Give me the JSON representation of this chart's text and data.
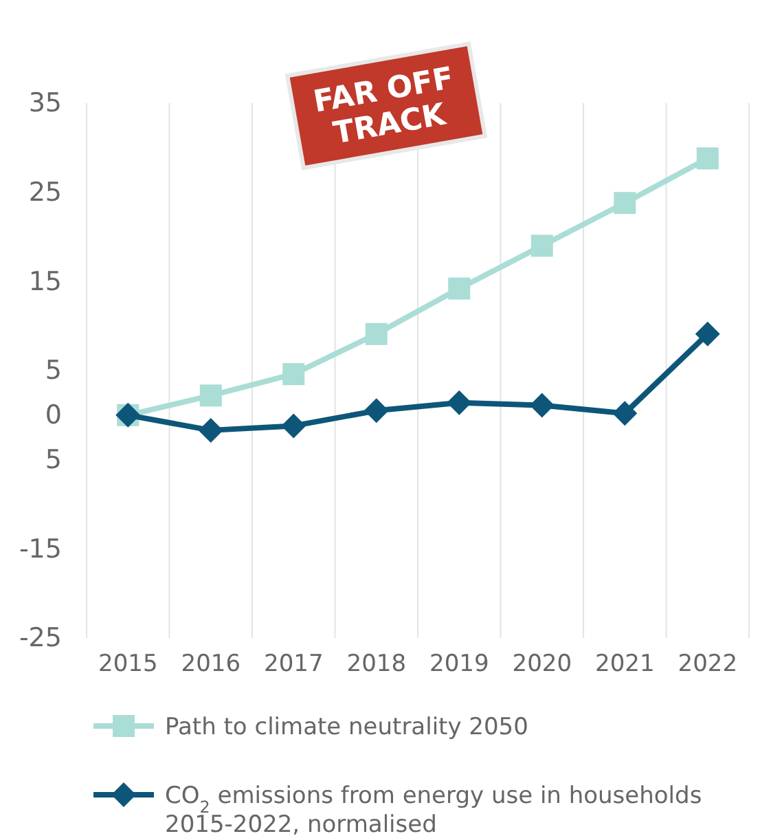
{
  "chart_data": {
    "type": "line",
    "categories": [
      "2015",
      "2016",
      "2017",
      "2018",
      "2019",
      "2020",
      "2021",
      "2022"
    ],
    "series": [
      {
        "name": "Path to climate neutrality 2050",
        "color": "#a9ddd6",
        "marker": "square",
        "values": [
          0,
          2.2,
          4.6,
          9.1,
          14.2,
          19,
          23.8,
          28.8
        ]
      },
      {
        "name": "CO$_{2}$ emissions from energy use in households 2015-2022, normalised",
        "color": "#0d5679",
        "marker": "diamond",
        "values": [
          0,
          -1.7,
          -1.2,
          0.5,
          1.4,
          1.1,
          0.2,
          9.1
        ]
      }
    ],
    "ylim": [
      -25,
      35
    ],
    "yticks": [
      35,
      25,
      15,
      5,
      0,
      {
        "value": -5,
        "label": "5"
      },
      -15,
      -25
    ],
    "grid": "x",
    "legend": "bottom",
    "annotations": [
      "FAR OFF TRACK"
    ]
  }
}
